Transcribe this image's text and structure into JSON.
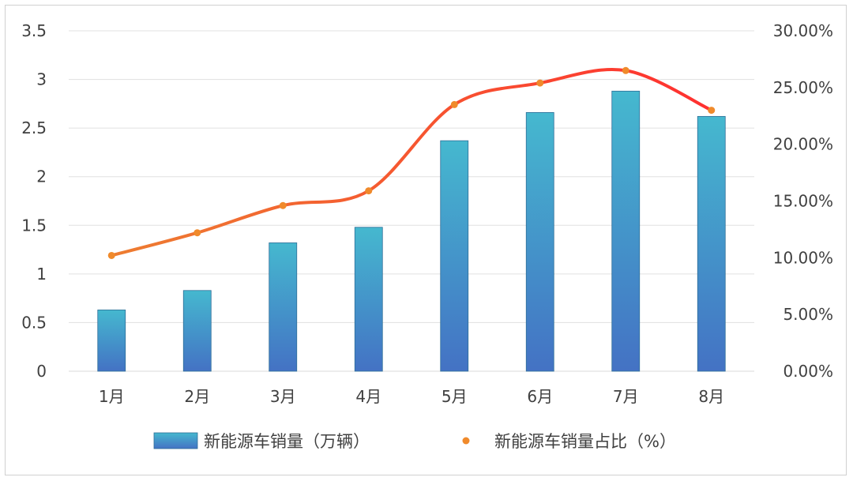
{
  "chart_data": {
    "type": "bar",
    "categories": [
      "1月",
      "2月",
      "3月",
      "4月",
      "5月",
      "6月",
      "7月",
      "8月"
    ],
    "series": [
      {
        "name": "新能源车销量（万辆）",
        "type": "bar",
        "axis": "left",
        "values": [
          0.63,
          0.83,
          1.32,
          1.48,
          2.37,
          2.66,
          2.88,
          2.62
        ]
      },
      {
        "name": "新能源车销量占比（%）",
        "type": "line",
        "axis": "right",
        "values": [
          10.2,
          12.2,
          14.6,
          15.9,
          23.5,
          25.4,
          26.5,
          23.0
        ]
      }
    ],
    "ylim_left": [
      0,
      3.5
    ],
    "yticks_left": [
      "0",
      "0.5",
      "1",
      "1.5",
      "2",
      "2.5",
      "3",
      "3.5"
    ],
    "ylim_right": [
      0,
      30
    ],
    "yticks_right": [
      "0.00%",
      "5.00%",
      "10.00%",
      "15.00%",
      "20.00%",
      "25.00%",
      "30.00%"
    ],
    "grid": true,
    "legend_position": "bottom",
    "colors": {
      "bar_top": "#45b8cf",
      "bar_bottom": "#4472c4",
      "bar_edge": "#2e6e97",
      "line_start": "#ed7d31",
      "line_end": "#ff3030",
      "marker": "#f08a2b",
      "grid": "#e0e0e0",
      "axis": "#d9d9d9"
    }
  }
}
